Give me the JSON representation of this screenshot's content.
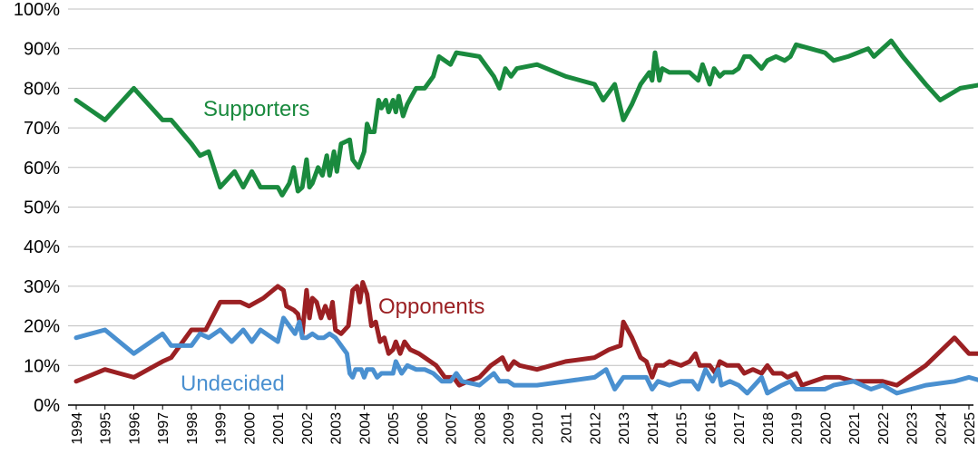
{
  "chart_data": {
    "type": "line",
    "title": "",
    "xlabel": "",
    "ylabel": "",
    "xlim": [
      1994,
      2025
    ],
    "ylim": [
      0,
      100
    ],
    "y_tick_format": "percent",
    "y_ticks": [
      "0%",
      "10%",
      "20%",
      "30%",
      "40%",
      "50%",
      "60%",
      "70%",
      "80%",
      "90%",
      "100%"
    ],
    "x_ticks": [
      "1994",
      "1995",
      "1996",
      "1997",
      "1998",
      "1999",
      "2000",
      "2001",
      "2002",
      "2003",
      "2004",
      "2005",
      "2006",
      "2007",
      "2008",
      "2009",
      "2010",
      "2011",
      "2012",
      "2013",
      "2014",
      "2015",
      "2016",
      "2017",
      "2018",
      "2019",
      "2020",
      "2021",
      "2022",
      "2023",
      "2024",
      "2025"
    ],
    "grid": "horizontal",
    "legend": "inline labels",
    "series": [
      {
        "name": "Supporters",
        "color": "#1a8a3e",
        "points": [
          [
            1994.0,
            77
          ],
          [
            1995.0,
            72
          ],
          [
            1996.0,
            80
          ],
          [
            1997.0,
            72
          ],
          [
            1997.3,
            72
          ],
          [
            1998.0,
            66
          ],
          [
            1998.3,
            63
          ],
          [
            1998.6,
            64
          ],
          [
            1999.0,
            55
          ],
          [
            1999.5,
            59
          ],
          [
            1999.8,
            55
          ],
          [
            2000.1,
            59
          ],
          [
            2000.4,
            55
          ],
          [
            2001.0,
            55
          ],
          [
            2001.15,
            53
          ],
          [
            2001.4,
            56
          ],
          [
            2001.55,
            60
          ],
          [
            2001.7,
            54
          ],
          [
            2001.85,
            55
          ],
          [
            2002.0,
            62
          ],
          [
            2002.1,
            55
          ],
          [
            2002.2,
            56
          ],
          [
            2002.4,
            60
          ],
          [
            2002.55,
            58
          ],
          [
            2002.7,
            63
          ],
          [
            2002.8,
            58
          ],
          [
            2002.95,
            64
          ],
          [
            2003.05,
            59
          ],
          [
            2003.2,
            66
          ],
          [
            2003.5,
            67
          ],
          [
            2003.6,
            62
          ],
          [
            2003.8,
            60
          ],
          [
            2004.0,
            64
          ],
          [
            2004.1,
            71
          ],
          [
            2004.2,
            69
          ],
          [
            2004.35,
            69
          ],
          [
            2004.5,
            77
          ],
          [
            2004.6,
            75
          ],
          [
            2004.75,
            77
          ],
          [
            2004.85,
            74
          ],
          [
            2005.0,
            77
          ],
          [
            2005.1,
            74
          ],
          [
            2005.2,
            78
          ],
          [
            2005.35,
            73
          ],
          [
            2005.5,
            76
          ],
          [
            2005.8,
            80
          ],
          [
            2006.1,
            80
          ],
          [
            2006.4,
            83
          ],
          [
            2006.6,
            88
          ],
          [
            2007.0,
            86
          ],
          [
            2007.2,
            89
          ],
          [
            2008.0,
            88
          ],
          [
            2008.5,
            83
          ],
          [
            2008.7,
            80
          ],
          [
            2008.9,
            85
          ],
          [
            2009.1,
            83
          ],
          [
            2009.3,
            85
          ],
          [
            2010.0,
            86
          ],
          [
            2011.0,
            83
          ],
          [
            2012.0,
            81
          ],
          [
            2012.3,
            77
          ],
          [
            2012.7,
            81
          ],
          [
            2013.0,
            72
          ],
          [
            2013.3,
            76
          ],
          [
            2013.6,
            81
          ],
          [
            2013.9,
            84
          ],
          [
            2014.0,
            82
          ],
          [
            2014.1,
            89
          ],
          [
            2014.25,
            82
          ],
          [
            2014.35,
            85
          ],
          [
            2014.6,
            84
          ],
          [
            2015.0,
            84
          ],
          [
            2015.3,
            84
          ],
          [
            2015.6,
            82
          ],
          [
            2015.75,
            86
          ],
          [
            2016.0,
            81
          ],
          [
            2016.15,
            85
          ],
          [
            2016.35,
            83
          ],
          [
            2016.5,
            84
          ],
          [
            2016.8,
            84
          ],
          [
            2017.0,
            85
          ],
          [
            2017.2,
            88
          ],
          [
            2017.4,
            88
          ],
          [
            2017.8,
            85
          ],
          [
            2018.0,
            87
          ],
          [
            2018.3,
            88
          ],
          [
            2018.6,
            87
          ],
          [
            2018.8,
            88
          ],
          [
            2019.0,
            91
          ],
          [
            2019.5,
            90
          ],
          [
            2020.0,
            89
          ],
          [
            2020.3,
            87
          ],
          [
            2020.8,
            88
          ],
          [
            2021.5,
            90
          ],
          [
            2021.7,
            88
          ],
          [
            2022.3,
            92
          ],
          [
            2022.7,
            88
          ],
          [
            2023.5,
            81
          ],
          [
            2024.0,
            77
          ],
          [
            2024.7,
            80
          ],
          [
            2025.5,
            81
          ]
        ]
      },
      {
        "name": "Opponents",
        "color": "#9b2023",
        "points": [
          [
            1994.0,
            6
          ],
          [
            1995.0,
            9
          ],
          [
            1996.0,
            7
          ],
          [
            1997.0,
            11
          ],
          [
            1997.3,
            12
          ],
          [
            1998.0,
            19
          ],
          [
            1998.5,
            19
          ],
          [
            1999.0,
            26
          ],
          [
            1999.7,
            26
          ],
          [
            2000.0,
            25
          ],
          [
            2000.5,
            27
          ],
          [
            2001.0,
            30
          ],
          [
            2001.2,
            29
          ],
          [
            2001.3,
            25
          ],
          [
            2001.55,
            24
          ],
          [
            2001.7,
            23
          ],
          [
            2001.85,
            18
          ],
          [
            2002.0,
            29
          ],
          [
            2002.1,
            22
          ],
          [
            2002.2,
            27
          ],
          [
            2002.35,
            26
          ],
          [
            2002.5,
            22
          ],
          [
            2002.65,
            25
          ],
          [
            2002.8,
            22
          ],
          [
            2002.9,
            26
          ],
          [
            2003.0,
            19
          ],
          [
            2003.2,
            18
          ],
          [
            2003.45,
            20
          ],
          [
            2003.6,
            29
          ],
          [
            2003.75,
            30
          ],
          [
            2003.85,
            26
          ],
          [
            2003.95,
            31
          ],
          [
            2004.1,
            28
          ],
          [
            2004.25,
            20
          ],
          [
            2004.4,
            21
          ],
          [
            2004.55,
            16
          ],
          [
            2004.7,
            17
          ],
          [
            2004.85,
            13
          ],
          [
            2005.0,
            14
          ],
          [
            2005.1,
            16
          ],
          [
            2005.25,
            13
          ],
          [
            2005.4,
            16
          ],
          [
            2005.6,
            14
          ],
          [
            2005.9,
            13
          ],
          [
            2006.1,
            12
          ],
          [
            2006.5,
            10
          ],
          [
            2006.8,
            7
          ],
          [
            2007.1,
            7
          ],
          [
            2007.3,
            5
          ],
          [
            2007.6,
            6
          ],
          [
            2008.0,
            7
          ],
          [
            2008.4,
            10
          ],
          [
            2008.8,
            12
          ],
          [
            2009.0,
            9
          ],
          [
            2009.2,
            11
          ],
          [
            2009.4,
            10
          ],
          [
            2010.0,
            9
          ],
          [
            2011.0,
            11
          ],
          [
            2012.0,
            12
          ],
          [
            2012.5,
            14
          ],
          [
            2012.9,
            15
          ],
          [
            2013.0,
            21
          ],
          [
            2013.3,
            17
          ],
          [
            2013.6,
            12
          ],
          [
            2013.8,
            11
          ],
          [
            2014.0,
            7
          ],
          [
            2014.15,
            10
          ],
          [
            2014.4,
            10
          ],
          [
            2014.6,
            11
          ],
          [
            2015.0,
            10
          ],
          [
            2015.3,
            11
          ],
          [
            2015.5,
            13
          ],
          [
            2015.65,
            10
          ],
          [
            2016.0,
            10
          ],
          [
            2016.2,
            8
          ],
          [
            2016.35,
            11
          ],
          [
            2016.6,
            10
          ],
          [
            2017.0,
            10
          ],
          [
            2017.2,
            8
          ],
          [
            2017.5,
            9
          ],
          [
            2017.8,
            8
          ],
          [
            2018.0,
            10
          ],
          [
            2018.2,
            8
          ],
          [
            2018.5,
            8
          ],
          [
            2018.7,
            7
          ],
          [
            2019.0,
            8
          ],
          [
            2019.2,
            5
          ],
          [
            2020.0,
            7
          ],
          [
            2020.5,
            7
          ],
          [
            2021.0,
            6
          ],
          [
            2022.0,
            6
          ],
          [
            2022.5,
            5
          ],
          [
            2023.5,
            10
          ],
          [
            2024.5,
            17
          ],
          [
            2025.0,
            13
          ],
          [
            2025.5,
            13
          ]
        ]
      },
      {
        "name": "Undecided",
        "color": "#4a90d0",
        "points": [
          [
            1994.0,
            17
          ],
          [
            1995.0,
            19
          ],
          [
            1996.0,
            13
          ],
          [
            1997.0,
            18
          ],
          [
            1997.3,
            15
          ],
          [
            1998.0,
            15
          ],
          [
            1998.3,
            18
          ],
          [
            1998.6,
            17
          ],
          [
            1999.0,
            19
          ],
          [
            1999.4,
            16
          ],
          [
            1999.8,
            19
          ],
          [
            2000.1,
            16
          ],
          [
            2000.4,
            19
          ],
          [
            2001.0,
            16
          ],
          [
            2001.2,
            22
          ],
          [
            2001.4,
            20
          ],
          [
            2001.6,
            18
          ],
          [
            2001.75,
            21
          ],
          [
            2001.85,
            17
          ],
          [
            2002.0,
            17
          ],
          [
            2002.2,
            18
          ],
          [
            2002.4,
            17
          ],
          [
            2002.6,
            17
          ],
          [
            2002.8,
            18
          ],
          [
            2003.0,
            17
          ],
          [
            2003.2,
            15
          ],
          [
            2003.4,
            13
          ],
          [
            2003.5,
            8
          ],
          [
            2003.6,
            7
          ],
          [
            2003.7,
            9
          ],
          [
            2003.9,
            9
          ],
          [
            2004.0,
            7
          ],
          [
            2004.1,
            9
          ],
          [
            2004.3,
            9
          ],
          [
            2004.45,
            7
          ],
          [
            2004.6,
            8
          ],
          [
            2004.8,
            8
          ],
          [
            2005.0,
            8
          ],
          [
            2005.1,
            11
          ],
          [
            2005.3,
            8
          ],
          [
            2005.5,
            10
          ],
          [
            2005.8,
            9
          ],
          [
            2006.1,
            9
          ],
          [
            2006.4,
            8
          ],
          [
            2006.7,
            6
          ],
          [
            2007.0,
            6
          ],
          [
            2007.2,
            8
          ],
          [
            2007.4,
            6
          ],
          [
            2008.0,
            5
          ],
          [
            2008.5,
            8
          ],
          [
            2008.7,
            6
          ],
          [
            2009.0,
            6
          ],
          [
            2009.2,
            5
          ],
          [
            2010.0,
            5
          ],
          [
            2011.0,
            6
          ],
          [
            2012.0,
            7
          ],
          [
            2012.4,
            9
          ],
          [
            2012.7,
            4
          ],
          [
            2013.0,
            7
          ],
          [
            2013.4,
            7
          ],
          [
            2013.8,
            7
          ],
          [
            2014.0,
            4
          ],
          [
            2014.2,
            6
          ],
          [
            2014.6,
            5
          ],
          [
            2015.0,
            6
          ],
          [
            2015.4,
            6
          ],
          [
            2015.6,
            4
          ],
          [
            2015.85,
            9
          ],
          [
            2016.1,
            6
          ],
          [
            2016.3,
            9
          ],
          [
            2016.4,
            5
          ],
          [
            2016.7,
            6
          ],
          [
            2017.0,
            5
          ],
          [
            2017.3,
            3
          ],
          [
            2017.8,
            7
          ],
          [
            2018.0,
            3
          ],
          [
            2018.5,
            5
          ],
          [
            2018.8,
            6
          ],
          [
            2019.0,
            4
          ],
          [
            2020.0,
            4
          ],
          [
            2020.3,
            5
          ],
          [
            2021.0,
            6
          ],
          [
            2021.6,
            4
          ],
          [
            2022.0,
            5
          ],
          [
            2022.5,
            3
          ],
          [
            2023.5,
            5
          ],
          [
            2024.5,
            6
          ],
          [
            2025.0,
            7
          ],
          [
            2025.5,
            6
          ]
        ]
      }
    ]
  }
}
